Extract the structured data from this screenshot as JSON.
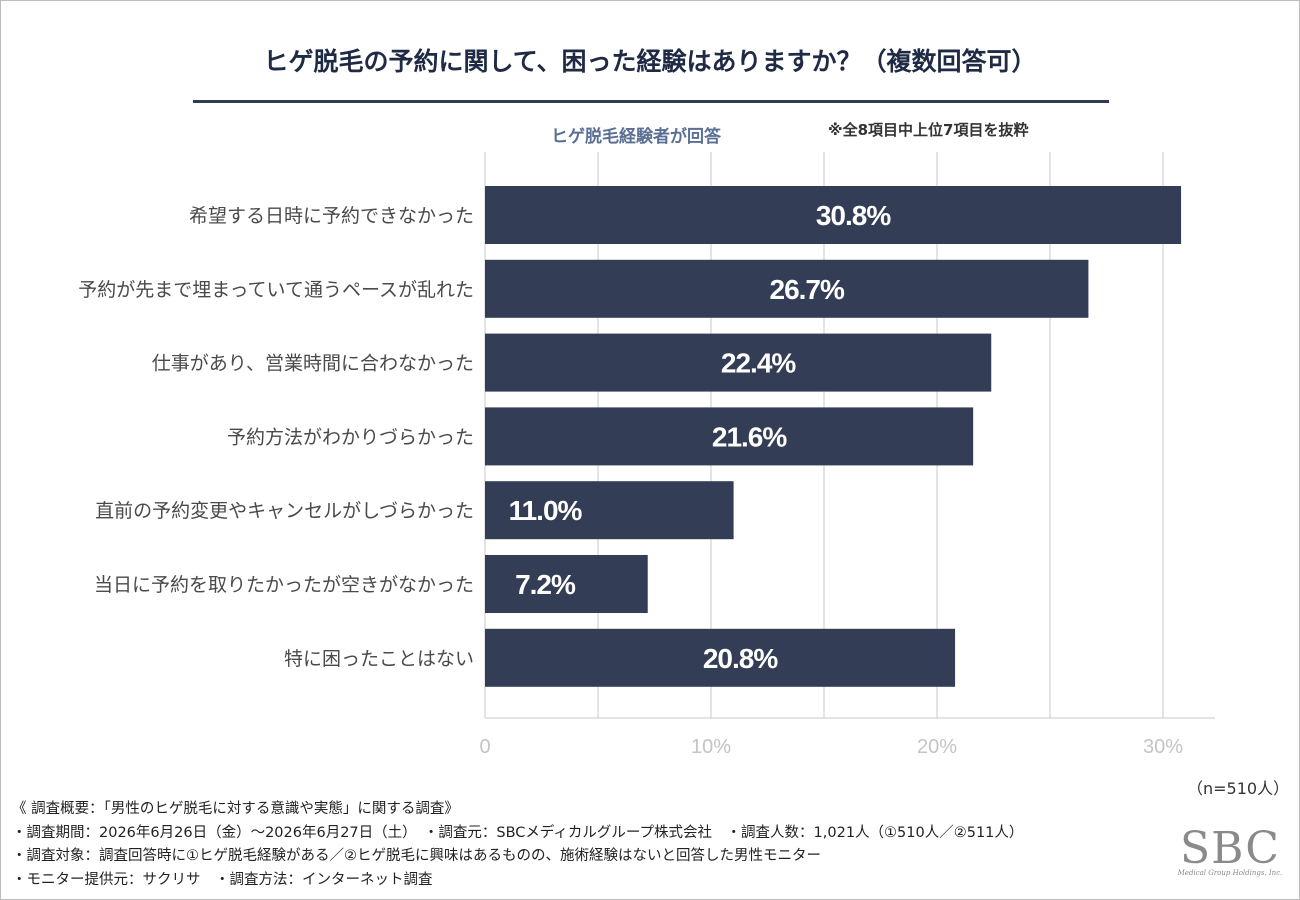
{
  "header": {
    "title": "ヒゲ脱毛の予約に関して、困った経験はありますか？（複数回答可）",
    "subtitle": "ヒゲ脱毛経験者が回答",
    "note": "※全8項目中上位7項目を抜粋"
  },
  "chart_data": {
    "type": "bar",
    "orientation": "horizontal",
    "categories": [
      "希望する日時に予約できなかった",
      "予約が先まで埋まっていて通うペースが乱れた",
      "仕事があり、営業時間に合わなかった",
      "予約方法がわかりづらかった",
      "直前の予約変更やキャンセルがしづらかった",
      "当日に予約を取りたかったが空きがなかった",
      "特に困ったことはない"
    ],
    "values": [
      30.8,
      26.7,
      22.4,
      21.6,
      11.0,
      7.2,
      20.8
    ],
    "data_labels": [
      "30.8%",
      "26.7%",
      "22.4%",
      "21.6%",
      "11.0%",
      "7.2%",
      "20.8%"
    ],
    "xlim": [
      0,
      32.3
    ],
    "x_ticks": [
      0,
      10,
      20,
      30
    ],
    "x_tick_labels": [
      "0",
      "10%",
      "20%",
      "30%"
    ],
    "grid": true,
    "bar_color": "#333d55",
    "label_color": "#ffffff"
  },
  "sample": "（n=510人）",
  "footer": {
    "lines": [
      "《 調査概要：「男性のヒゲ脱毛に対する意識や実態」に関する調査》",
      "・調査期間：2026年6月26日（金）～2026年6月27日（土）　・調査元：SBCメディカルグループ株式会社　・調査人数：1,021人（①510人／②511人）",
      "・調査対象：調査回答時に①ヒゲ脱毛経験がある／②ヒゲ脱毛に興味はあるものの、施術経験はないと回答した男性モニター",
      "・モニター提供元：サクリサ　・調査方法：インターネット調査"
    ]
  },
  "logo": {
    "main": "SBC",
    "sub": "Medical Group Holdings, Inc."
  }
}
